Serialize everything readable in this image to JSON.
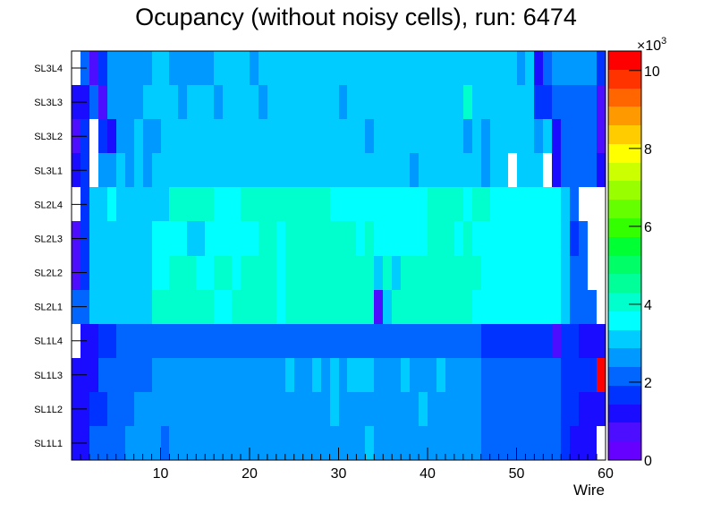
{
  "chart_data": {
    "type": "heatmap",
    "title": "Ocupancy (without noisy cells), run: 6474",
    "xlabel": "Wire",
    "ylabel": "",
    "xlim": [
      0,
      60
    ],
    "x_ticks": [
      10,
      20,
      30,
      40,
      50,
      60
    ],
    "y_categories": [
      "SL1L1",
      "SL1L2",
      "SL1L3",
      "SL1L4",
      "SL2L1",
      "SL2L2",
      "SL2L3",
      "SL2L4",
      "SL3L1",
      "SL3L2",
      "SL3L3",
      "SL3L4"
    ],
    "colorbar": {
      "min": 0,
      "max": 10500,
      "ticks": [
        0,
        2,
        4,
        6,
        8,
        10
      ],
      "multiplier_label": "×10",
      "multiplier_exponent": "3",
      "palette": [
        "#6600ff",
        "#4d0dff",
        "#1a0dff",
        "#0033ff",
        "#0066ff",
        "#0099ff",
        "#00ccff",
        "#00ffff",
        "#00ffcc",
        "#00ff99",
        "#00ff66",
        "#00ff33",
        "#33ff00",
        "#66ff00",
        "#99ff00",
        "#ccff00",
        "#ffff00",
        "#ffcc00",
        "#ff9900",
        "#ff6600",
        "#ff3300",
        "#ff0000"
      ]
    },
    "z_units": "entries",
    "z_note": "values in entries per cell; zero means empty",
    "z": [
      [
        1000,
        1000,
        2000,
        2000,
        2000,
        2000,
        2500,
        2500,
        2500,
        2500,
        2000,
        2500,
        2500,
        2500,
        2500,
        2500,
        2500,
        2500,
        2500,
        2500,
        2500,
        2500,
        2500,
        2500,
        2500,
        2500,
        2500,
        2500,
        2500,
        2500,
        2500,
        2500,
        2500,
        3200,
        2500,
        2500,
        2500,
        2500,
        2500,
        2500,
        2500,
        2500,
        2500,
        2500,
        2500,
        2500,
        2000,
        2000,
        2000,
        2000,
        2000,
        2000,
        2000,
        2000,
        2000,
        1500,
        1000,
        1000,
        1000,
        0
      ],
      [
        1000,
        1000,
        1500,
        1500,
        2000,
        2000,
        2000,
        2500,
        2500,
        2500,
        2500,
        2500,
        2500,
        2500,
        2500,
        2500,
        2500,
        2500,
        2500,
        2500,
        2500,
        2500,
        2500,
        2500,
        2500,
        2500,
        2500,
        2500,
        2500,
        3000,
        2500,
        2500,
        2500,
        2500,
        2500,
        2500,
        2500,
        2500,
        2500,
        3000,
        2500,
        2500,
        2500,
        2500,
        2500,
        2500,
        2000,
        2000,
        2000,
        2000,
        2000,
        2000,
        2000,
        2000,
        2000,
        1500,
        1500,
        1000,
        1000,
        1000
      ],
      [
        1000,
        1000,
        1000,
        2000,
        2000,
        2000,
        2000,
        2000,
        2000,
        2500,
        2500,
        2500,
        2500,
        2500,
        2500,
        2500,
        2500,
        2500,
        2500,
        2500,
        2500,
        2500,
        2500,
        2500,
        3000,
        2500,
        2500,
        3000,
        2500,
        3000,
        2500,
        3200,
        3200,
        3000,
        2500,
        2500,
        2500,
        3000,
        2500,
        2500,
        2500,
        3000,
        2500,
        2500,
        2500,
        2500,
        2000,
        2000,
        2000,
        2000,
        2000,
        2000,
        2000,
        2000,
        2000,
        1500,
        1500,
        1500,
        1500,
        10500
      ],
      [
        0,
        1000,
        1000,
        1500,
        1500,
        2000,
        2000,
        2000,
        2000,
        2000,
        2000,
        2000,
        2000,
        2000,
        2000,
        2000,
        2000,
        2000,
        2000,
        2000,
        2000,
        2000,
        2000,
        2000,
        2000,
        2000,
        2000,
        2000,
        2000,
        2000,
        2000,
        2000,
        2000,
        2000,
        2000,
        2000,
        2000,
        2000,
        2000,
        2000,
        2000,
        2000,
        2000,
        2000,
        2000,
        2000,
        1500,
        1500,
        1500,
        1500,
        1500,
        1500,
        1500,
        1500,
        500,
        1500,
        1500,
        1000,
        1000,
        1000
      ],
      [
        2000,
        2000,
        3000,
        3000,
        3000,
        3000,
        3000,
        3000,
        3000,
        4000,
        4000,
        4000,
        4000,
        4000,
        4000,
        4000,
        3500,
        3500,
        4000,
        4000,
        4000,
        4000,
        4000,
        3500,
        4000,
        4000,
        4000,
        4000,
        4000,
        4000,
        4000,
        4000,
        4000,
        4000,
        500,
        3000,
        4000,
        4000,
        4000,
        4000,
        4000,
        4000,
        4000,
        4000,
        4000,
        3500,
        3500,
        3500,
        3500,
        3500,
        3500,
        3500,
        3500,
        3500,
        3500,
        3000,
        2000,
        2000,
        2000,
        0
      ],
      [
        800,
        1500,
        3000,
        3000,
        3000,
        3000,
        3000,
        3000,
        3000,
        3500,
        3500,
        4000,
        4000,
        4000,
        3500,
        3500,
        4000,
        4000,
        3500,
        4000,
        4000,
        4000,
        4000,
        3500,
        4000,
        4000,
        4000,
        4000,
        4000,
        4000,
        4000,
        4000,
        4000,
        4000,
        3000,
        4000,
        3000,
        4000,
        4000,
        4000,
        4000,
        4000,
        4000,
        4000,
        4000,
        4000,
        3500,
        3500,
        3500,
        3500,
        3500,
        3500,
        3500,
        3500,
        3500,
        3000,
        2000,
        2000,
        0,
        0
      ],
      [
        500,
        1500,
        3000,
        3000,
        3000,
        3000,
        3000,
        3000,
        3000,
        3500,
        3500,
        3500,
        3500,
        3000,
        3000,
        3500,
        3500,
        3500,
        3500,
        3500,
        3500,
        4000,
        4000,
        3500,
        4000,
        4000,
        4000,
        4000,
        4000,
        4000,
        4000,
        4000,
        3500,
        4000,
        3500,
        3500,
        3500,
        3500,
        3500,
        3500,
        4000,
        4000,
        4000,
        3500,
        4000,
        3500,
        3500,
        3500,
        3500,
        3500,
        3500,
        3500,
        3500,
        3500,
        3500,
        3000,
        1500,
        2000,
        0,
        0
      ],
      [
        0,
        1500,
        3000,
        3000,
        3500,
        3000,
        3000,
        3000,
        3000,
        3000,
        3000,
        4000,
        4000,
        4000,
        4000,
        4000,
        3500,
        3500,
        3500,
        4000,
        4000,
        4000,
        4000,
        4000,
        4000,
        4000,
        4000,
        4000,
        4000,
        3500,
        3500,
        3500,
        3500,
        3500,
        3500,
        3500,
        3500,
        3500,
        3500,
        3500,
        4000,
        4000,
        4000,
        4000,
        3500,
        4000,
        4000,
        3500,
        3500,
        3500,
        3500,
        3500,
        3500,
        3500,
        3500,
        3000,
        2000,
        0,
        0,
        0
      ],
      [
        1000,
        1500,
        0,
        2500,
        2500,
        3000,
        2500,
        3000,
        2500,
        3000,
        3000,
        3000,
        3000,
        3000,
        3000,
        3000,
        3000,
        3000,
        3000,
        3000,
        3000,
        3000,
        3000,
        3000,
        3000,
        3000,
        3000,
        3000,
        3000,
        3000,
        3000,
        3000,
        3000,
        3000,
        3000,
        3000,
        3000,
        3000,
        2500,
        3000,
        3000,
        3000,
        3000,
        3000,
        3000,
        3000,
        2500,
        3000,
        3000,
        0,
        3000,
        3000,
        3000,
        0,
        1000,
        2000,
        2000,
        2000,
        2000,
        1000
      ],
      [
        800,
        1500,
        0,
        1500,
        1000,
        2500,
        2500,
        3000,
        2500,
        2500,
        3000,
        3000,
        3000,
        3000,
        3000,
        3000,
        3000,
        3000,
        3000,
        3000,
        3000,
        3000,
        3000,
        3000,
        3000,
        3000,
        3000,
        3000,
        3000,
        3000,
        3000,
        3000,
        3000,
        2500,
        3000,
        3000,
        3000,
        3000,
        3000,
        3000,
        3000,
        3000,
        3000,
        3000,
        2500,
        3000,
        2500,
        3000,
        3000,
        3000,
        3000,
        3000,
        2500,
        3000,
        1000,
        2000,
        2000,
        2000,
        2000,
        800
      ],
      [
        1000,
        1000,
        2000,
        800,
        2500,
        2500,
        2500,
        2500,
        3000,
        3000,
        3000,
        3000,
        2500,
        3000,
        3000,
        3000,
        2500,
        3000,
        3000,
        3000,
        3000,
        2500,
        3000,
        3000,
        3000,
        3000,
        3000,
        3000,
        3000,
        3000,
        2500,
        3000,
        3000,
        3000,
        3000,
        3000,
        3000,
        3000,
        3000,
        3000,
        3000,
        3000,
        3000,
        3000,
        4000,
        3000,
        3000,
        3000,
        3000,
        3000,
        3000,
        3000,
        1500,
        1500,
        2000,
        2000,
        2000,
        2000,
        2000,
        800
      ],
      [
        0,
        2000,
        800,
        1500,
        2500,
        2500,
        2500,
        2500,
        2500,
        3000,
        3000,
        2500,
        2500,
        2500,
        2500,
        2500,
        3000,
        3000,
        3000,
        3000,
        2500,
        3000,
        3000,
        3000,
        3000,
        3000,
        3000,
        3000,
        3000,
        3000,
        3000,
        3000,
        3000,
        3000,
        3000,
        3000,
        3000,
        3000,
        3000,
        3000,
        3000,
        3000,
        3000,
        3000,
        3000,
        3000,
        3000,
        3000,
        3000,
        3000,
        2500,
        3000,
        1000,
        2000,
        2500,
        2500,
        2500,
        2500,
        2500,
        1500
      ]
    ]
  }
}
